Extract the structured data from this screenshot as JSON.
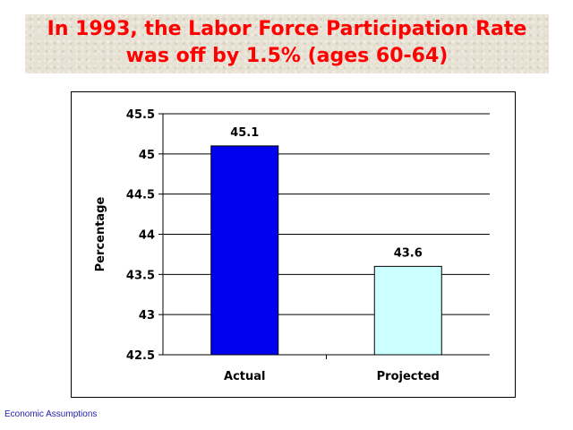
{
  "title": {
    "line1": "In 1993, the Labor Force Participation Rate",
    "line2": "was off by 1.5% (ages 60-64)"
  },
  "colors": {
    "title": "#ff0000",
    "banner_background": "#e7e1d4",
    "footer": "#1f1fa8"
  },
  "chart_data": {
    "type": "bar",
    "title": "",
    "xlabel": "",
    "ylabel": "Percentage",
    "categories": [
      "Actual",
      "Projected"
    ],
    "values": [
      45.1,
      43.6
    ],
    "value_labels": [
      "45.1",
      "43.6"
    ],
    "bar_colors": [
      "#0000ee",
      "#ccffff"
    ],
    "ylim": [
      42.5,
      45.5
    ],
    "yticks": [
      42.5,
      43,
      43.5,
      44,
      44.5,
      45,
      45.5
    ],
    "ytick_labels": [
      "42.5",
      "43",
      "43.5",
      "44",
      "44.5",
      "45",
      "45.5"
    ],
    "grid": true,
    "legend": false
  },
  "footer": "Economic Assumptions"
}
